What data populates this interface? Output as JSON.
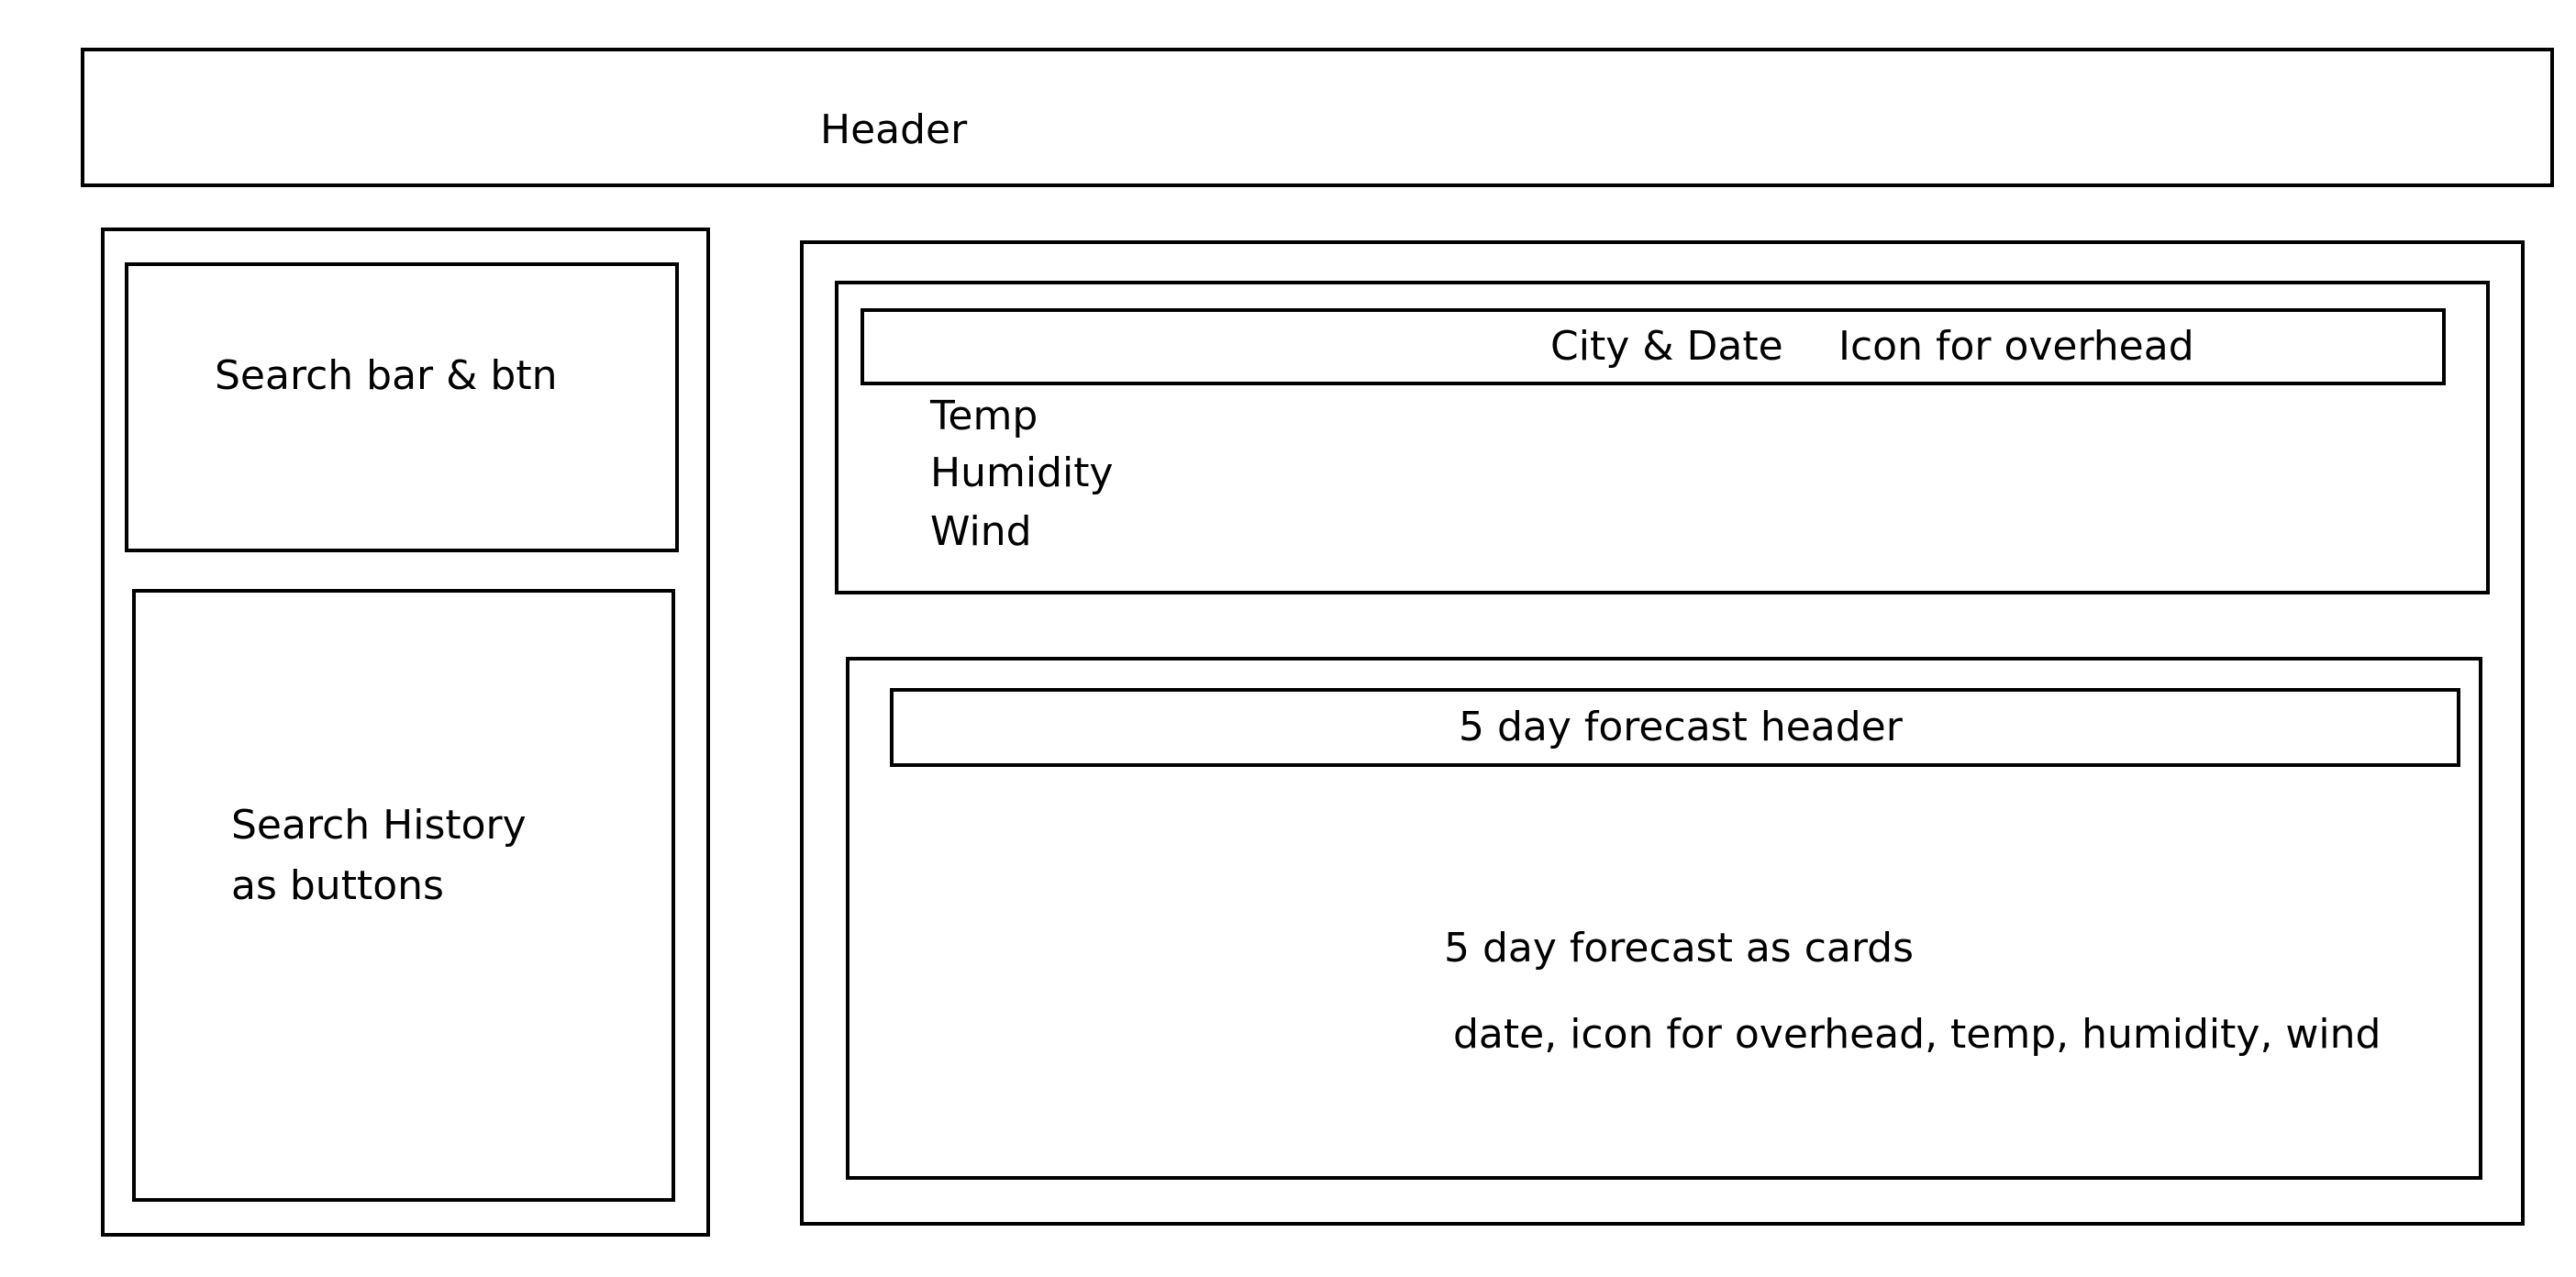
{
  "header": {
    "label": "Header"
  },
  "sidebar": {
    "search_label": "Search bar & btn",
    "history_label_line1": "Search History",
    "history_label_line2": "as buttons"
  },
  "current_weather": {
    "city_date_label": "City & Date",
    "icon_label": "Icon for overhead",
    "temp_label": "Temp",
    "humidity_label": "Humidity",
    "wind_label": "Wind"
  },
  "forecast": {
    "header_label": "5 day forecast header",
    "cards_label": "5 day forecast as cards",
    "cards_fields_label": "date, icon for overhead, temp, humidity, wind"
  }
}
